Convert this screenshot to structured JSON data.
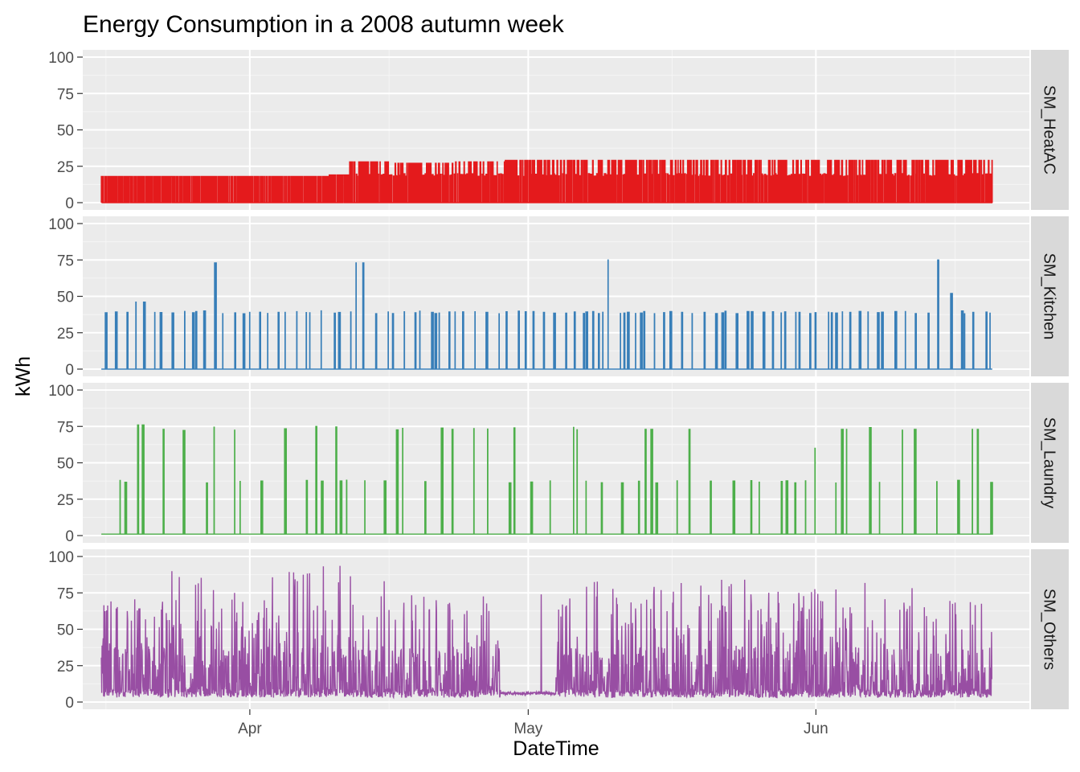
{
  "chart_data": {
    "type": "line",
    "title": "Energy Consumption in a 2008 autumn week",
    "xlabel": "DateTime",
    "ylabel": "kWh",
    "xlim": [
      "2008-03-14",
      "2008-06-24"
    ],
    "ylim": [
      0,
      100
    ],
    "x_ticks": [
      {
        "date": "2008-04-01",
        "label": "Apr"
      },
      {
        "date": "2008-05-01",
        "label": "May"
      },
      {
        "date": "2008-06-01",
        "label": "Jun"
      }
    ],
    "y_ticks": [
      0,
      25,
      50,
      75,
      100
    ],
    "grid": true,
    "facet_strip": "right",
    "series": [
      {
        "name": "SM_HeatAC",
        "color": "#E41A1C",
        "x": [
          "2008-03-19",
          "2008-03-25",
          "2008-04-01",
          "2008-04-08",
          "2008-04-11",
          "2008-04-12",
          "2008-04-20",
          "2008-04-26",
          "2008-05-01",
          "2008-05-10",
          "2008-05-15",
          "2008-05-21",
          "2008-05-27",
          "2008-06-01",
          "2008-06-08",
          "2008-06-15",
          "2008-06-18"
        ],
        "values": [
          18,
          18,
          18,
          18,
          19,
          28,
          27,
          28,
          29,
          29,
          29,
          29,
          29,
          29,
          29,
          29,
          29
        ],
        "baseline": 0
      },
      {
        "name": "SM_Kitchen",
        "color": "#377EB8",
        "x": [
          "2008-03-20",
          "2008-03-28",
          "2008-04-13",
          "2008-04-20",
          "2008-04-27",
          "2008-05-03",
          "2008-05-10",
          "2008-05-20",
          "2008-05-30",
          "2008-06-05",
          "2008-06-14",
          "2008-06-16",
          "2008-06-18"
        ],
        "values": [
          46,
          73,
          73,
          39,
          39,
          39,
          75,
          39,
          39,
          39,
          75,
          52,
          39
        ],
        "baseline": 0
      },
      {
        "name": "SM_Laundry",
        "color": "#4DAF4A",
        "x": [
          "2008-03-20",
          "2008-03-23",
          "2008-03-29",
          "2008-04-01",
          "2008-04-08",
          "2008-04-12",
          "2008-04-19",
          "2008-04-23",
          "2008-04-30",
          "2008-05-05",
          "2008-05-08",
          "2008-05-14",
          "2008-05-18",
          "2008-05-22",
          "2008-05-27",
          "2008-06-01",
          "2008-06-04",
          "2008-06-09",
          "2008-06-12",
          "2008-06-15",
          "2008-06-18"
        ],
        "values": [
          76,
          73,
          73,
          73,
          75,
          38,
          73,
          73,
          74,
          73,
          70,
          73,
          73,
          73,
          73,
          60,
          73,
          73,
          73,
          73,
          73
        ],
        "baseline": 1
      },
      {
        "name": "SM_Others",
        "color": "#984EA3",
        "x": [
          "2008-03-19",
          "2008-03-25",
          "2008-03-31",
          "2008-04-06",
          "2008-04-11",
          "2008-04-17",
          "2008-04-23",
          "2008-04-28",
          "2008-05-04",
          "2008-05-10",
          "2008-05-16",
          "2008-05-22",
          "2008-05-28",
          "2008-06-03",
          "2008-06-09",
          "2008-06-14",
          "2008-06-18"
        ],
        "values": [
          72,
          92,
          80,
          90,
          96,
          84,
          70,
          74,
          80,
          84,
          82,
          85,
          80,
          80,
          82,
          76,
          55
        ],
        "baseline": 5
      }
    ]
  }
}
